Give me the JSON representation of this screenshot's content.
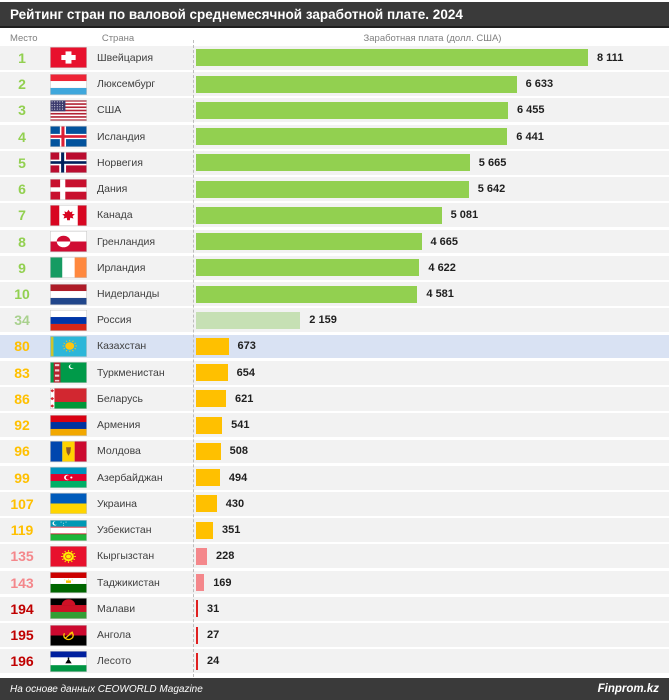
{
  "title": "Рейтинг стран по валовой среднемесячной заработной плате. 2024",
  "columns": {
    "rank": "Место",
    "country": "Страна",
    "salary": "Заработная плата (долл. США)"
  },
  "footer": {
    "source": "На основе данных CEOWORLD Magazine",
    "brand": "Finprom.kz"
  },
  "colors": {
    "header_bg": "#3a3a3a",
    "row_bg": "#f2f2f2",
    "highlight_row_bg": "#d9e2f3",
    "tiers": {
      "green": {
        "rank": "#92d050",
        "bar": "#92d050"
      },
      "lightgreen": {
        "rank": "#a9d18e",
        "bar": "#c6e0b4"
      },
      "gold": {
        "rank": "#ffc000",
        "bar": "#ffc000"
      },
      "salmon": {
        "rank": "#f4878b",
        "bar": "#f4878b"
      },
      "red": {
        "rank": "#c00000",
        "bar": "#e02020"
      }
    }
  },
  "chart_data": {
    "type": "bar",
    "orientation": "horizontal",
    "title": "Рейтинг стран по валовой среднемесячной заработной плате. 2024",
    "xlabel": "Заработная плата (долл. США)",
    "value_axis_max": 8111,
    "grid": false,
    "legend": false,
    "rows": [
      {
        "rank": 1,
        "country": "Швейцария",
        "value": 8111,
        "value_label": "8 111",
        "tier": "green",
        "flag": "switzerland",
        "highlight": false
      },
      {
        "rank": 2,
        "country": "Люксембург",
        "value": 6633,
        "value_label": "6 633",
        "tier": "green",
        "flag": "luxembourg",
        "highlight": false
      },
      {
        "rank": 3,
        "country": "США",
        "value": 6455,
        "value_label": "6 455",
        "tier": "green",
        "flag": "usa",
        "highlight": false
      },
      {
        "rank": 4,
        "country": "Исландия",
        "value": 6441,
        "value_label": "6 441",
        "tier": "green",
        "flag": "iceland",
        "highlight": false
      },
      {
        "rank": 5,
        "country": "Норвегия",
        "value": 5665,
        "value_label": "5 665",
        "tier": "green",
        "flag": "norway",
        "highlight": false
      },
      {
        "rank": 6,
        "country": "Дания",
        "value": 5642,
        "value_label": "5 642",
        "tier": "green",
        "flag": "denmark",
        "highlight": false
      },
      {
        "rank": 7,
        "country": "Канада",
        "value": 5081,
        "value_label": "5 081",
        "tier": "green",
        "flag": "canada",
        "highlight": false
      },
      {
        "rank": 8,
        "country": "Гренландия",
        "value": 4665,
        "value_label": "4 665",
        "tier": "green",
        "flag": "greenland",
        "highlight": false
      },
      {
        "rank": 9,
        "country": "Ирландия",
        "value": 4622,
        "value_label": "4 622",
        "tier": "green",
        "flag": "ireland",
        "highlight": false
      },
      {
        "rank": 10,
        "country": "Нидерланды",
        "value": 4581,
        "value_label": "4 581",
        "tier": "green",
        "flag": "netherlands",
        "highlight": false
      },
      {
        "rank": 34,
        "country": "Россия",
        "value": 2159,
        "value_label": "2 159",
        "tier": "lightgreen",
        "flag": "russia",
        "highlight": false
      },
      {
        "rank": 80,
        "country": "Казахстан",
        "value": 673,
        "value_label": "673",
        "tier": "gold",
        "flag": "kazakhstan",
        "highlight": true
      },
      {
        "rank": 83,
        "country": "Туркменистан",
        "value": 654,
        "value_label": "654",
        "tier": "gold",
        "flag": "turkmenistan",
        "highlight": false
      },
      {
        "rank": 86,
        "country": "Беларусь",
        "value": 621,
        "value_label": "621",
        "tier": "gold",
        "flag": "belarus",
        "highlight": false
      },
      {
        "rank": 92,
        "country": "Армения",
        "value": 541,
        "value_label": "541",
        "tier": "gold",
        "flag": "armenia",
        "highlight": false
      },
      {
        "rank": 96,
        "country": "Молдова",
        "value": 508,
        "value_label": "508",
        "tier": "gold",
        "flag": "moldova",
        "highlight": false
      },
      {
        "rank": 99,
        "country": "Азербайджан",
        "value": 494,
        "value_label": "494",
        "tier": "gold",
        "flag": "azerbaijan",
        "highlight": false
      },
      {
        "rank": 107,
        "country": "Украина",
        "value": 430,
        "value_label": "430",
        "tier": "gold",
        "flag": "ukraine",
        "highlight": false
      },
      {
        "rank": 119,
        "country": "Узбекистан",
        "value": 351,
        "value_label": "351",
        "tier": "gold",
        "flag": "uzbekistan",
        "highlight": false
      },
      {
        "rank": 135,
        "country": "Кыргызстан",
        "value": 228,
        "value_label": "228",
        "tier": "salmon",
        "flag": "kyrgyzstan",
        "highlight": false
      },
      {
        "rank": 143,
        "country": "Таджикистан",
        "value": 169,
        "value_label": "169",
        "tier": "salmon",
        "flag": "tajikistan",
        "highlight": false
      },
      {
        "rank": 194,
        "country": "Малави",
        "value": 31,
        "value_label": "31",
        "tier": "red",
        "flag": "malawi",
        "highlight": false
      },
      {
        "rank": 195,
        "country": "Ангола",
        "value": 27,
        "value_label": "27",
        "tier": "red",
        "flag": "angola",
        "highlight": false
      },
      {
        "rank": 196,
        "country": "Лесото",
        "value": 24,
        "value_label": "24",
        "tier": "red",
        "flag": "lesotho",
        "highlight": false
      }
    ]
  }
}
